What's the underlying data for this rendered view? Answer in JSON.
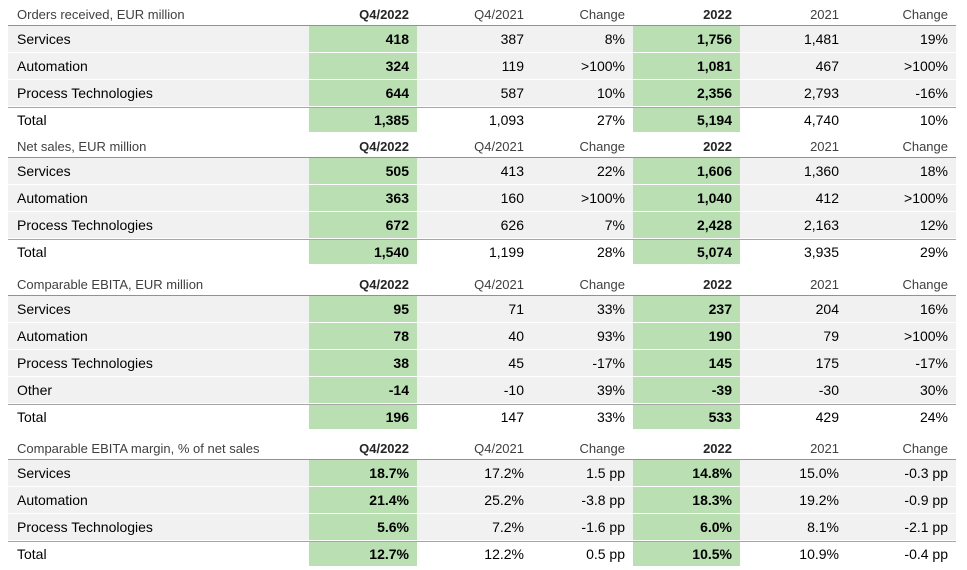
{
  "columns": [
    "Q4/2022",
    "Q4/2021",
    "Change",
    "2022",
    "2021",
    "Change"
  ],
  "sections": [
    {
      "title": "Orders received, EUR million",
      "rows": [
        {
          "label": "Services",
          "values": [
            "418",
            "387",
            "8%",
            "1,756",
            "1,481",
            "19%"
          ]
        },
        {
          "label": "Automation",
          "values": [
            "324",
            "119",
            ">100%",
            "1,081",
            "467",
            ">100%"
          ]
        },
        {
          "label": "Process Technologies",
          "values": [
            "644",
            "587",
            "10%",
            "2,356",
            "2,793",
            "-16%"
          ]
        }
      ],
      "total": {
        "label": "Total",
        "values": [
          "1,385",
          "1,093",
          "27%",
          "5,194",
          "4,740",
          "10%"
        ]
      }
    },
    {
      "title": "Net sales, EUR million",
      "rows": [
        {
          "label": "Services",
          "values": [
            "505",
            "413",
            "22%",
            "1,606",
            "1,360",
            "18%"
          ]
        },
        {
          "label": "Automation",
          "values": [
            "363",
            "160",
            ">100%",
            "1,040",
            "412",
            ">100%"
          ]
        },
        {
          "label": "Process Technologies",
          "values": [
            "672",
            "626",
            "7%",
            "2,428",
            "2,163",
            "12%"
          ]
        }
      ],
      "total": {
        "label": "Total",
        "values": [
          "1,540",
          "1,199",
          "28%",
          "5,074",
          "3,935",
          "29%"
        ]
      }
    },
    {
      "title": "Comparable EBITA, EUR million",
      "rows": [
        {
          "label": "Services",
          "values": [
            "95",
            "71",
            "33%",
            "237",
            "204",
            "16%"
          ]
        },
        {
          "label": "Automation",
          "values": [
            "78",
            "40",
            "93%",
            "190",
            "79",
            ">100%"
          ]
        },
        {
          "label": "Process Technologies",
          "values": [
            "38",
            "45",
            "-17%",
            "145",
            "175",
            "-17%"
          ]
        },
        {
          "label": "Other",
          "values": [
            "-14",
            "-10",
            "39%",
            "-39",
            "-30",
            "30%"
          ]
        }
      ],
      "total": {
        "label": "Total",
        "values": [
          "196",
          "147",
          "33%",
          "533",
          "429",
          "24%"
        ]
      }
    },
    {
      "title": "Comparable EBITA margin, % of net sales",
      "rows": [
        {
          "label": "Services",
          "values": [
            "18.7%",
            "17.2%",
            "1.5 pp",
            "14.8%",
            "15.0%",
            "-0.3 pp"
          ]
        },
        {
          "label": "Automation",
          "values": [
            "21.4%",
            "25.2%",
            "-3.8 pp",
            "18.3%",
            "19.2%",
            "-0.9 pp"
          ]
        },
        {
          "label": "Process Technologies",
          "values": [
            "5.6%",
            "7.2%",
            "-1.6 pp",
            "6.0%",
            "8.1%",
            "-2.1 pp"
          ]
        }
      ],
      "total": {
        "label": "Total",
        "values": [
          "12.7%",
          "12.2%",
          "0.5 pp",
          "10.5%",
          "10.9%",
          "-0.4 pp"
        ]
      }
    }
  ],
  "colors": {
    "highlight": "#b9dfb3",
    "row_background": "#f1f1f1",
    "header_rule": "#5cb85c",
    "total_rule": "#a6a6a6"
  }
}
